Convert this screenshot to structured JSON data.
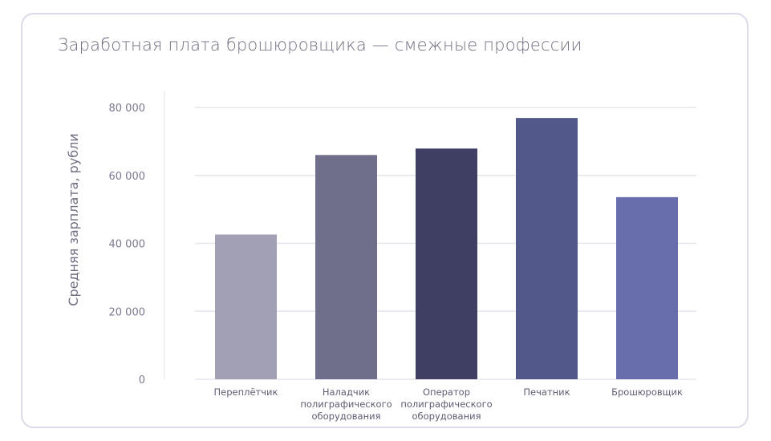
{
  "chart_data": {
    "type": "bar",
    "title": "Заработная плата брошюровщика — смежные профессии",
    "xlabel": "",
    "ylabel": "Средняя зарплата, рубли",
    "ylim": [
      0,
      80000
    ],
    "yticks": [
      0,
      20000,
      40000,
      60000,
      80000
    ],
    "ytick_labels": [
      "0",
      "20 000",
      "40 000",
      "60 000",
      "80 000"
    ],
    "grid": true,
    "categories": [
      [
        "Переплётчик"
      ],
      [
        "Наладчик",
        "полиграфического",
        "оборудования"
      ],
      [
        "Оператор",
        "полиграфического",
        "оборудования"
      ],
      [
        "Печатник"
      ],
      [
        "Брошюровщик"
      ]
    ],
    "values": [
      42600,
      66000,
      67900,
      76900,
      53600
    ],
    "colors": [
      "#a1a0b4",
      "#6f6f8b",
      "#3e3f63",
      "#525889",
      "#686eab"
    ]
  }
}
